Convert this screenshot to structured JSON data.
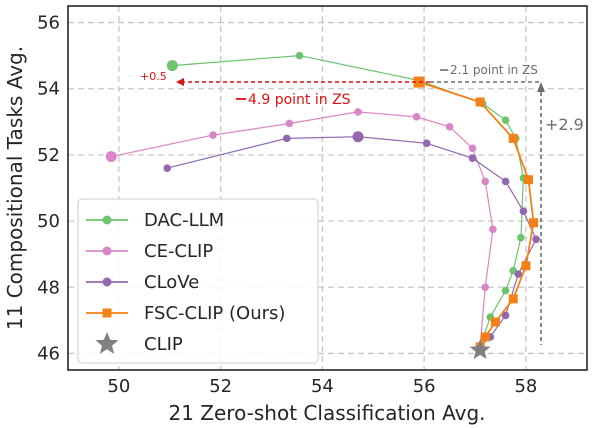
{
  "chart_data": {
    "type": "line",
    "xlabel": "21 Zero-shot Classification Avg.",
    "ylabel": "11 Compositional Tasks Avg.",
    "xlim": [
      49.0,
      59.2
    ],
    "ylim": [
      45.5,
      56.5
    ],
    "xticks": [
      50,
      52,
      54,
      56,
      58
    ],
    "yticks": [
      46,
      48,
      50,
      52,
      54,
      56
    ],
    "grid": true,
    "legend_position": "lower-left",
    "series": [
      {
        "name": "DAC-LLM",
        "color": "#6cc46c",
        "marker": "circle",
        "points": [
          [
            51.05,
            54.7
          ],
          [
            53.55,
            55.0
          ],
          [
            55.9,
            54.25
          ],
          [
            57.15,
            53.55
          ],
          [
            57.6,
            53.05
          ],
          [
            57.8,
            52.5
          ],
          [
            57.95,
            51.3
          ],
          [
            57.9,
            49.5
          ],
          [
            57.75,
            48.5
          ],
          [
            57.6,
            47.9
          ],
          [
            57.3,
            47.1
          ],
          [
            57.1,
            46.2
          ]
        ],
        "start_index": 0
      },
      {
        "name": "CE-CLIP",
        "color": "#d986c9",
        "marker": "circle",
        "points": [
          [
            49.85,
            51.95
          ],
          [
            51.85,
            52.6
          ],
          [
            53.35,
            52.95
          ],
          [
            54.7,
            53.3
          ],
          [
            55.85,
            53.15
          ],
          [
            56.5,
            52.85
          ],
          [
            56.95,
            52.2
          ],
          [
            57.2,
            51.2
          ],
          [
            57.35,
            49.75
          ],
          [
            57.2,
            48.0
          ],
          [
            57.1,
            46.2
          ]
        ],
        "start_index": 0
      },
      {
        "name": "CLoVe",
        "color": "#9467b0",
        "marker": "circle",
        "points": [
          [
            50.95,
            51.6
          ],
          [
            53.3,
            52.5
          ],
          [
            54.7,
            52.55
          ],
          [
            56.05,
            52.35
          ],
          [
            56.95,
            51.9
          ],
          [
            57.6,
            51.2
          ],
          [
            57.95,
            50.3
          ],
          [
            58.2,
            49.45
          ],
          [
            57.85,
            48.4
          ],
          [
            57.6,
            47.15
          ],
          [
            57.3,
            46.5
          ],
          [
            57.1,
            46.2
          ]
        ],
        "start_index": 2
      },
      {
        "name": "FSC-CLIP (Ours)",
        "color": "#f48116",
        "marker": "square",
        "points": [
          [
            55.9,
            54.2
          ],
          [
            57.1,
            53.6
          ],
          [
            57.75,
            52.5
          ],
          [
            58.05,
            51.25
          ],
          [
            58.15,
            49.95
          ],
          [
            58.0,
            48.65
          ],
          [
            57.75,
            47.65
          ],
          [
            57.4,
            46.95
          ],
          [
            57.2,
            46.5
          ],
          [
            57.1,
            46.2
          ]
        ],
        "start_index": 0
      },
      {
        "name": "CLIP",
        "color": "#808080",
        "marker": "star",
        "points": [
          [
            57.1,
            46.1
          ]
        ],
        "start_index": 0
      }
    ],
    "annotations": {
      "plus_half": "+0.5",
      "red_label": "4.9 point in ZS",
      "gray_label": "2.1 point in ZS",
      "plus_delta": "+2.9"
    },
    "annotation_colors": {
      "red": "#dd1111",
      "gray": "#6d6d6d"
    }
  }
}
